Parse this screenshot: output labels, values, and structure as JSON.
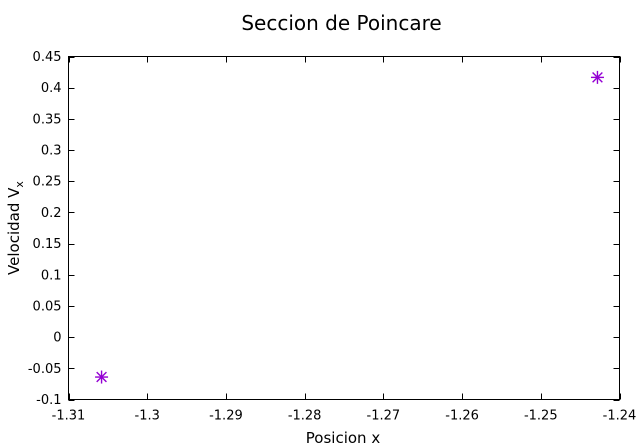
{
  "chart_data": {
    "type": "scatter",
    "title": "Seccion de Poincare",
    "xlabel": "Posicion x",
    "ylabel_main": "Velocidad V",
    "ylabel_sub": "x",
    "xlim": [
      -1.31,
      -1.24
    ],
    "ylim": [
      -0.1,
      0.45
    ],
    "xticks": [
      -1.31,
      -1.3,
      -1.29,
      -1.28,
      -1.27,
      -1.26,
      -1.25,
      -1.24
    ],
    "xtick_labels": [
      "-1.31",
      "-1.3",
      "-1.29",
      "-1.28",
      "-1.27",
      "-1.26",
      "-1.25",
      "-1.24"
    ],
    "yticks": [
      -0.1,
      -0.05,
      0,
      0.05,
      0.1,
      0.15,
      0.2,
      0.25,
      0.3,
      0.35,
      0.4,
      0.45
    ],
    "ytick_labels": [
      "-0.1",
      "-0.05",
      "0",
      "0.05",
      "0.1",
      "0.15",
      "0.2",
      "0.25",
      "0.3",
      "0.35",
      "0.4",
      "0.45"
    ],
    "grid": false,
    "marker": "asterisk",
    "series": [
      {
        "color": "#9400d3",
        "x": [
          -1.3058,
          -1.2428
        ],
        "y": [
          -0.064,
          0.4165
        ]
      }
    ]
  }
}
